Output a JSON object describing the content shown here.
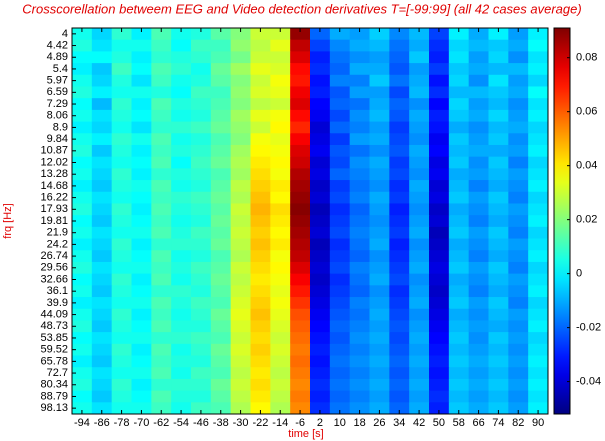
{
  "chart_data": {
    "type": "heatmap",
    "title": "Crosscorellation betweem EEG and Video detection derivatives T=[-99:99] (all 42 cases average)",
    "x_label": "time [s]",
    "y_label": "frq [Hz]",
    "x": [
      -94,
      -86,
      -78,
      -70,
      -62,
      -54,
      -46,
      -38,
      -30,
      -22,
      -14,
      -6,
      2,
      10,
      18,
      26,
      34,
      42,
      50,
      58,
      66,
      74,
      82,
      90
    ],
    "xlim": [
      -98,
      94
    ],
    "xticks": [
      -94,
      -86,
      -78,
      -70,
      -62,
      -54,
      -46,
      -38,
      -30,
      -22,
      -14,
      -6,
      2,
      10,
      18,
      26,
      34,
      42,
      50,
      58,
      66,
      74,
      82,
      90
    ],
    "y": [
      4,
      4.42,
      4.89,
      5.4,
      5.97,
      6.59,
      7.29,
      8.06,
      8.9,
      9.84,
      10.87,
      12.02,
      13.28,
      14.68,
      16.22,
      17.93,
      19.81,
      21.9,
      24.2,
      26.74,
      29.56,
      32.66,
      36.1,
      39.9,
      44.09,
      48.73,
      53.85,
      59.52,
      65.78,
      72.7,
      80.34,
      88.79,
      98.13
    ],
    "clim": [
      -0.052,
      0.091
    ],
    "colorbar_ticks": [
      -0.04,
      -0.02,
      0,
      0.02,
      0.04,
      0.06,
      0.08
    ],
    "colormap": "jet",
    "z": [
      [
        0.004,
        -0.004,
        0.008,
        0.0,
        0.012,
        0.004,
        0.006,
        0.014,
        0.02,
        0.03,
        0.03,
        0.088,
        -0.02,
        -0.01,
        -0.012,
        -0.005,
        -0.015,
        -0.008,
        -0.025,
        0.0,
        -0.01,
        0.0,
        -0.012,
        0.0
      ],
      [
        0.006,
        -0.002,
        0.004,
        0.004,
        0.01,
        0.002,
        0.01,
        0.01,
        0.022,
        0.028,
        0.034,
        0.082,
        -0.025,
        -0.015,
        -0.01,
        -0.008,
        -0.018,
        -0.01,
        -0.028,
        -0.004,
        -0.008,
        -0.006,
        -0.01,
        0.002
      ],
      [
        0.002,
        0.002,
        0.006,
        0.0,
        0.008,
        0.006,
        0.008,
        0.012,
        0.018,
        0.03,
        0.03,
        0.078,
        -0.03,
        -0.018,
        -0.014,
        -0.012,
        -0.02,
        -0.006,
        -0.03,
        -0.002,
        -0.012,
        -0.004,
        -0.014,
        -0.002
      ],
      [
        0.0,
        -0.006,
        0.01,
        0.002,
        0.012,
        0.008,
        0.004,
        0.016,
        0.024,
        0.034,
        0.032,
        0.072,
        -0.028,
        -0.02,
        -0.01,
        -0.01,
        -0.022,
        -0.012,
        -0.026,
        -0.006,
        -0.01,
        -0.008,
        -0.008,
        0.0
      ],
      [
        0.004,
        -0.004,
        0.006,
        -0.002,
        0.01,
        0.004,
        0.006,
        0.014,
        0.02,
        0.03,
        0.036,
        0.07,
        -0.032,
        -0.016,
        -0.016,
        -0.006,
        -0.018,
        -0.01,
        -0.032,
        -0.004,
        -0.014,
        -0.002,
        -0.012,
        -0.004
      ],
      [
        0.006,
        0.0,
        0.004,
        0.004,
        0.006,
        0.002,
        0.01,
        0.01,
        0.022,
        0.032,
        0.034,
        0.075,
        -0.03,
        -0.022,
        -0.012,
        -0.012,
        -0.024,
        -0.008,
        -0.028,
        -0.008,
        -0.008,
        -0.006,
        -0.01,
        0.002
      ],
      [
        0.002,
        -0.008,
        0.008,
        0.0,
        0.012,
        0.006,
        0.008,
        0.012,
        0.02,
        0.028,
        0.03,
        0.078,
        -0.034,
        -0.02,
        -0.018,
        -0.01,
        -0.02,
        -0.014,
        -0.034,
        -0.004,
        -0.012,
        -0.008,
        -0.014,
        -0.002
      ],
      [
        0.004,
        -0.002,
        0.006,
        0.002,
        0.01,
        0.004,
        0.006,
        0.014,
        0.024,
        0.034,
        0.036,
        0.072,
        -0.036,
        -0.024,
        -0.014,
        -0.008,
        -0.022,
        -0.01,
        -0.03,
        -0.006,
        -0.01,
        -0.004,
        -0.012,
        0.0
      ],
      [
        0.0,
        -0.004,
        0.004,
        -0.002,
        0.008,
        0.008,
        0.01,
        0.016,
        0.022,
        0.03,
        0.038,
        0.068,
        -0.04,
        -0.02,
        -0.016,
        -0.012,
        -0.026,
        -0.012,
        -0.032,
        -0.01,
        -0.014,
        -0.008,
        -0.01,
        -0.004
      ],
      [
        0.004,
        0.0,
        0.008,
        0.004,
        0.012,
        0.004,
        0.006,
        0.012,
        0.02,
        0.036,
        0.034,
        0.074,
        -0.038,
        -0.026,
        -0.012,
        -0.01,
        -0.024,
        -0.014,
        -0.036,
        -0.006,
        -0.012,
        -0.006,
        -0.014,
        -0.002
      ],
      [
        0.006,
        -0.006,
        0.006,
        0.0,
        0.01,
        0.006,
        0.008,
        0.014,
        0.024,
        0.038,
        0.036,
        0.078,
        -0.036,
        -0.022,
        -0.018,
        -0.014,
        -0.022,
        -0.01,
        -0.034,
        -0.008,
        -0.01,
        -0.01,
        -0.012,
        0.0
      ],
      [
        0.002,
        -0.002,
        0.004,
        0.002,
        0.012,
        0.002,
        0.01,
        0.016,
        0.026,
        0.04,
        0.038,
        0.08,
        -0.04,
        -0.024,
        -0.014,
        -0.01,
        -0.026,
        -0.012,
        -0.038,
        -0.006,
        -0.014,
        -0.006,
        -0.016,
        -0.004
      ],
      [
        0.004,
        -0.004,
        0.008,
        0.0,
        0.008,
        0.006,
        0.008,
        0.012,
        0.024,
        0.042,
        0.036,
        0.084,
        -0.038,
        -0.02,
        -0.016,
        -0.012,
        -0.024,
        -0.014,
        -0.036,
        -0.01,
        -0.012,
        -0.008,
        -0.012,
        -0.002
      ],
      [
        0.0,
        -0.006,
        0.006,
        0.004,
        0.012,
        0.004,
        0.006,
        0.014,
        0.028,
        0.044,
        0.04,
        0.086,
        -0.042,
        -0.026,
        -0.018,
        -0.014,
        -0.028,
        -0.01,
        -0.04,
        -0.008,
        -0.016,
        -0.01,
        -0.014,
        0.0
      ],
      [
        0.004,
        -0.002,
        0.004,
        0.002,
        0.01,
        0.008,
        0.01,
        0.016,
        0.026,
        0.046,
        0.038,
        0.088,
        -0.04,
        -0.024,
        -0.016,
        -0.01,
        -0.026,
        -0.012,
        -0.038,
        -0.006,
        -0.012,
        -0.006,
        -0.016,
        -0.004
      ],
      [
        0.006,
        -0.004,
        0.008,
        0.0,
        0.012,
        0.006,
        0.008,
        0.014,
        0.03,
        0.048,
        0.042,
        0.09,
        -0.044,
        -0.028,
        -0.02,
        -0.012,
        -0.03,
        -0.014,
        -0.042,
        -0.01,
        -0.014,
        -0.008,
        -0.012,
        -0.002
      ],
      [
        0.002,
        -0.006,
        0.006,
        0.002,
        0.01,
        0.004,
        0.006,
        0.016,
        0.028,
        0.046,
        0.04,
        0.088,
        -0.042,
        -0.026,
        -0.018,
        -0.014,
        -0.028,
        -0.012,
        -0.04,
        -0.008,
        -0.016,
        -0.01,
        -0.014,
        0.0
      ],
      [
        0.004,
        -0.002,
        0.004,
        0.004,
        0.012,
        0.006,
        0.01,
        0.014,
        0.03,
        0.044,
        0.038,
        0.086,
        -0.04,
        -0.024,
        -0.016,
        -0.012,
        -0.026,
        -0.01,
        -0.044,
        -0.006,
        -0.012,
        -0.006,
        -0.016,
        -0.004
      ],
      [
        0.0,
        -0.004,
        0.008,
        0.0,
        0.008,
        0.008,
        0.008,
        0.016,
        0.028,
        0.046,
        0.04,
        0.084,
        -0.044,
        -0.028,
        -0.018,
        -0.01,
        -0.03,
        -0.014,
        -0.042,
        -0.01,
        -0.014,
        -0.008,
        -0.012,
        -0.002
      ],
      [
        0.004,
        -0.006,
        0.006,
        0.002,
        0.012,
        0.004,
        0.006,
        0.012,
        0.026,
        0.044,
        0.036,
        0.082,
        -0.042,
        -0.026,
        -0.02,
        -0.014,
        -0.028,
        -0.012,
        -0.04,
        -0.008,
        -0.016,
        -0.01,
        -0.014,
        0.0
      ],
      [
        0.006,
        -0.002,
        0.004,
        0.004,
        0.01,
        0.006,
        0.01,
        0.014,
        0.03,
        0.042,
        0.038,
        0.078,
        -0.04,
        -0.024,
        -0.016,
        -0.012,
        -0.026,
        -0.01,
        -0.038,
        -0.006,
        -0.012,
        -0.006,
        -0.016,
        -0.004
      ],
      [
        0.002,
        -0.004,
        0.008,
        0.0,
        0.012,
        0.004,
        0.008,
        0.016,
        0.028,
        0.04,
        0.036,
        0.074,
        -0.042,
        -0.028,
        -0.018,
        -0.01,
        -0.024,
        -0.014,
        -0.04,
        -0.01,
        -0.014,
        -0.008,
        -0.012,
        -0.002
      ],
      [
        0.004,
        -0.006,
        0.006,
        0.002,
        0.008,
        0.008,
        0.006,
        0.014,
        0.03,
        0.042,
        0.034,
        0.07,
        -0.04,
        -0.026,
        -0.02,
        -0.014,
        -0.028,
        -0.012,
        -0.042,
        -0.008,
        -0.016,
        -0.01,
        -0.014,
        0.0
      ],
      [
        0.0,
        -0.002,
        0.004,
        0.004,
        0.012,
        0.006,
        0.01,
        0.012,
        0.032,
        0.044,
        0.036,
        0.066,
        -0.038,
        -0.024,
        -0.016,
        -0.012,
        -0.026,
        -0.01,
        -0.04,
        -0.006,
        -0.012,
        -0.006,
        -0.016,
        -0.004
      ],
      [
        0.004,
        -0.004,
        0.008,
        0.0,
        0.01,
        0.004,
        0.008,
        0.016,
        0.034,
        0.046,
        0.034,
        0.062,
        -0.036,
        -0.022,
        -0.018,
        -0.01,
        -0.024,
        -0.014,
        -0.038,
        -0.01,
        -0.014,
        -0.008,
        -0.012,
        -0.002
      ],
      [
        0.006,
        -0.006,
        0.006,
        0.002,
        0.012,
        0.006,
        0.006,
        0.014,
        0.032,
        0.044,
        0.032,
        0.06,
        -0.034,
        -0.02,
        -0.016,
        -0.012,
        -0.022,
        -0.012,
        -0.036,
        -0.008,
        -0.012,
        -0.01,
        -0.014,
        0.0
      ],
      [
        0.002,
        -0.002,
        0.004,
        0.004,
        0.008,
        0.008,
        0.01,
        0.012,
        0.03,
        0.042,
        0.03,
        0.058,
        -0.032,
        -0.022,
        -0.014,
        -0.01,
        -0.024,
        -0.01,
        -0.034,
        -0.006,
        -0.014,
        -0.006,
        -0.012,
        -0.004
      ],
      [
        0.004,
        -0.004,
        0.008,
        0.0,
        0.012,
        0.004,
        0.008,
        0.016,
        0.032,
        0.044,
        0.032,
        0.056,
        -0.03,
        -0.02,
        -0.016,
        -0.012,
        -0.022,
        -0.012,
        -0.032,
        -0.008,
        -0.012,
        -0.008,
        -0.014,
        -0.002
      ],
      [
        0.0,
        -0.006,
        0.006,
        0.002,
        0.01,
        0.006,
        0.006,
        0.014,
        0.03,
        0.042,
        0.03,
        0.058,
        -0.032,
        -0.018,
        -0.014,
        -0.01,
        -0.02,
        -0.01,
        -0.03,
        -0.006,
        -0.01,
        -0.006,
        -0.012,
        0.0
      ],
      [
        0.004,
        -0.002,
        0.004,
        0.004,
        0.012,
        0.004,
        0.01,
        0.012,
        0.028,
        0.04,
        0.028,
        0.056,
        -0.03,
        -0.02,
        -0.016,
        -0.012,
        -0.022,
        -0.012,
        -0.032,
        -0.008,
        -0.012,
        -0.008,
        -0.014,
        -0.002
      ],
      [
        0.006,
        -0.004,
        0.008,
        0.0,
        0.008,
        0.008,
        0.008,
        0.016,
        0.03,
        0.042,
        0.03,
        0.054,
        -0.028,
        -0.018,
        -0.014,
        -0.01,
        -0.02,
        -0.01,
        -0.03,
        -0.006,
        -0.01,
        -0.006,
        -0.012,
        0.0
      ],
      [
        0.002,
        -0.006,
        0.006,
        0.002,
        0.012,
        0.006,
        0.006,
        0.014,
        0.028,
        0.04,
        0.028,
        0.056,
        -0.03,
        -0.02,
        -0.016,
        -0.012,
        -0.022,
        -0.012,
        -0.028,
        -0.008,
        -0.012,
        -0.008,
        -0.014,
        -0.002
      ],
      [
        0.004,
        -0.002,
        0.004,
        0.004,
        0.01,
        0.004,
        0.01,
        0.012,
        0.026,
        0.038,
        0.026,
        0.054,
        -0.028,
        -0.018,
        -0.014,
        -0.01,
        -0.02,
        -0.01,
        -0.03,
        -0.006,
        -0.01,
        -0.006,
        -0.012,
        0.0
      ]
    ]
  }
}
